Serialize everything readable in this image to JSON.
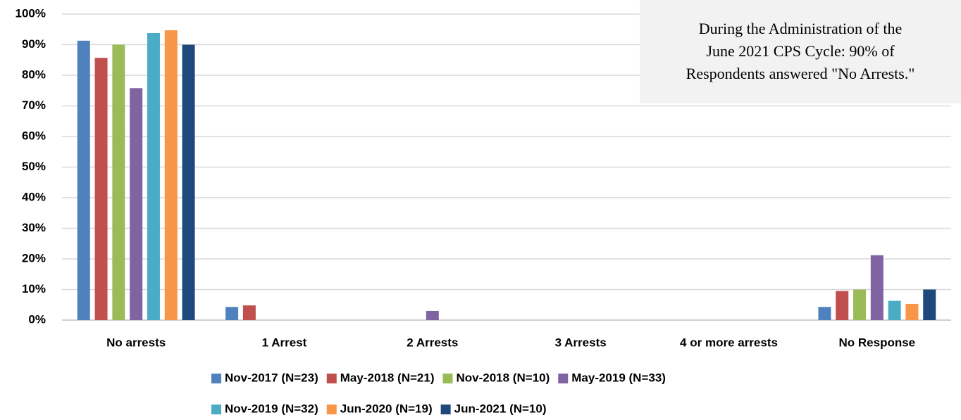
{
  "chart_data": {
    "type": "bar",
    "annotation": [
      "During the Administration of the",
      "June 2021 CPS Cycle: 90% of",
      "Respondents answered \"No Arrests.\""
    ],
    "categories": [
      "No arrests",
      "1 Arrest",
      "2 Arrests",
      "3 Arrests",
      "4 or more arrests",
      "No Response"
    ],
    "series": [
      {
        "name": "Nov-2017 (N=23)",
        "color": "#4f81bd",
        "values": [
          91.3,
          4.3,
          0,
          0,
          0,
          4.3
        ]
      },
      {
        "name": "May-2018 (N=21)",
        "color": "#c0504d",
        "values": [
          85.7,
          4.8,
          0,
          0,
          0,
          9.5
        ]
      },
      {
        "name": "Nov-2018 (N=10)",
        "color": "#9bbb59",
        "values": [
          90,
          0,
          0,
          0,
          0,
          10
        ]
      },
      {
        "name": "May-2019 (N=33)",
        "color": "#8064a2",
        "values": [
          75.8,
          0,
          3.0,
          0,
          0,
          21.2
        ]
      },
      {
        "name": "Nov-2019 (N=32)",
        "color": "#4bacc6",
        "values": [
          93.8,
          0,
          0,
          0,
          0,
          6.3
        ]
      },
      {
        "name": "Jun-2020 (N=19)",
        "color": "#f79646",
        "values": [
          94.7,
          0,
          0,
          0,
          0,
          5.3
        ]
      },
      {
        "name": "Jun-2021 (N=10)",
        "color": "#1f497d",
        "values": [
          90,
          0,
          0,
          0,
          0,
          10
        ]
      }
    ],
    "ylim": [
      0,
      100
    ],
    "yticks": [
      {
        "value": 0,
        "label": "0%"
      },
      {
        "value": 10,
        "label": "10%"
      },
      {
        "value": 20,
        "label": "20%"
      },
      {
        "value": 30,
        "label": "30%"
      },
      {
        "value": 40,
        "label": "40%"
      },
      {
        "value": 50,
        "label": "50%"
      },
      {
        "value": 60,
        "label": "60%"
      },
      {
        "value": 70,
        "label": "70%"
      },
      {
        "value": 80,
        "label": "80%"
      },
      {
        "value": 90,
        "label": "90%"
      },
      {
        "value": 100,
        "label": "100%"
      }
    ],
    "grid": true
  }
}
